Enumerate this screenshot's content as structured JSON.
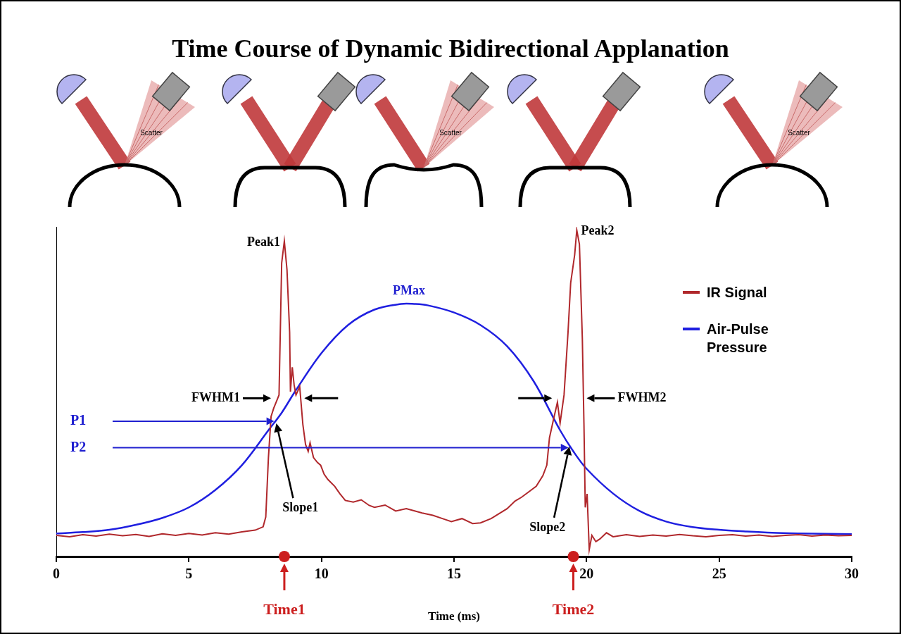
{
  "diagram": {
    "panels": [
      {
        "label": "Scatter"
      },
      {
        "label": null
      },
      {
        "label": "Scatter"
      },
      {
        "label": null
      },
      {
        "label": "Scatter"
      }
    ]
  },
  "chart_data": {
    "type": "line",
    "title": "Time Course of Dynamic Bidirectional Applanation",
    "x_label": "Time (ms)",
    "xlim": [
      0,
      30
    ],
    "xticks": [
      0,
      5,
      10,
      15,
      20,
      25,
      30
    ],
    "ylim": [
      0,
      100
    ],
    "tick_labels": "x",
    "grid": false,
    "legend": "upper right",
    "series": [
      {
        "name": "IR Signal",
        "color": "#b0282c",
        "x": [
          0,
          0.5,
          1,
          1.5,
          2,
          2.5,
          3,
          3.5,
          4,
          4.5,
          5,
          5.5,
          6,
          6.5,
          7,
          7.5,
          7.8,
          7.9,
          8.0,
          8.1,
          8.2,
          8.3,
          8.4,
          8.5,
          8.6,
          8.7,
          8.8,
          8.83,
          8.9,
          8.97,
          9.04,
          9.18,
          9.3,
          9.4,
          9.5,
          9.57,
          9.7,
          9.85,
          9.97,
          10.1,
          10.24,
          10.5,
          10.7,
          10.9,
          11.2,
          11.5,
          11.8,
          12.0,
          12.4,
          12.8,
          13.2,
          13.8,
          14.2,
          14.6,
          14.9,
          15.3,
          15.7,
          16.0,
          16.4,
          16.7,
          17.0,
          17.3,
          17.55,
          17.8,
          18.1,
          18.35,
          18.5,
          18.6,
          18.75,
          18.9,
          19.0,
          19.15,
          19.3,
          19.4,
          19.55,
          19.63,
          19.73,
          19.84,
          19.9,
          19.95,
          20.02,
          20.1,
          20.2,
          20.35,
          20.5,
          20.75,
          21,
          21.5,
          22,
          22.5,
          23,
          23.5,
          24,
          24.5,
          25,
          25.5,
          26,
          26.5,
          27,
          27.5,
          28,
          28.5,
          29,
          29.5,
          30
        ],
        "values": [
          6.4,
          6.0,
          6.6,
          6.2,
          6.8,
          6.3,
          6.7,
          6.1,
          6.9,
          6.4,
          7.0,
          6.5,
          7.2,
          6.8,
          7.5,
          8.0,
          9.0,
          12,
          30,
          42.5,
          45,
          47,
          49,
          89,
          95.7,
          87,
          68,
          50,
          57.4,
          52,
          49,
          51.5,
          40,
          34,
          31.9,
          34.5,
          30,
          28.5,
          27.7,
          25,
          23.4,
          21.3,
          19,
          17,
          16.5,
          17.2,
          15.5,
          14.9,
          15.6,
          13.8,
          14.5,
          13.2,
          12.5,
          11.4,
          10.6,
          11.5,
          10.0,
          10.2,
          11.5,
          13.0,
          14.5,
          16.8,
          18,
          19.5,
          21.3,
          24.5,
          27.7,
          36,
          41.5,
          46.8,
          40.4,
          49,
          68,
          83,
          91.5,
          99,
          94.7,
          66,
          40.4,
          14.9,
          19,
          2.1,
          6.4,
          4.5,
          5.3,
          7.2,
          6.0,
          6.6,
          6.1,
          6.5,
          6.2,
          6.7,
          6.3,
          6.0,
          6.4,
          6.6,
          6.2,
          6.5,
          6.1,
          6.4,
          6.6,
          6.2,
          6.5,
          6.3,
          6.4
        ]
      },
      {
        "name": "Air-Pulse Pressure",
        "color": "#1f1fe0",
        "x": [
          0,
          1,
          2,
          3,
          4,
          5,
          6,
          7,
          8,
          8.5,
          9,
          10,
          11,
          12,
          13,
          13.5,
          14,
          15,
          16,
          17,
          18,
          19,
          19.5,
          20,
          21,
          22,
          23,
          24,
          25,
          26,
          27,
          28,
          29,
          30
        ],
        "values": [
          7.0,
          7.4,
          8.1,
          9.6,
          11.7,
          14.9,
          20.2,
          27.7,
          38.3,
          43.6,
          50,
          61.7,
          70.2,
          74.9,
          76.6,
          76.6,
          76.2,
          74,
          70.2,
          63.8,
          53.2,
          38.3,
          31.9,
          26.6,
          19.1,
          13.8,
          10.6,
          8.9,
          8.1,
          7.6,
          7.2,
          7.0,
          6.9,
          6.8
        ]
      }
    ],
    "annotations": {
      "peaks": [
        {
          "text": "Peak1",
          "x": 8.6,
          "y": 95.7
        },
        {
          "text": "Peak2",
          "x": 19.63,
          "y": 99
        }
      ],
      "pressure_max": {
        "text": "PMax",
        "x": 13.3,
        "y": 76.6
      },
      "pressures": [
        {
          "text": "P1",
          "x": 8.3,
          "y": 41
        },
        {
          "text": "P2",
          "x": 19.4,
          "y": 33
        }
      ],
      "fwhm": [
        {
          "text": "FWHM1",
          "from": 8.15,
          "to": 9.3,
          "y": 48
        },
        {
          "text": "FWHM2",
          "from": 18.75,
          "to": 19.95,
          "y": 48
        }
      ],
      "slopes": [
        {
          "text": "Slope1",
          "x": 8.3,
          "y": 41
        },
        {
          "text": "Slope2",
          "x": 19.35,
          "y": 34
        }
      ],
      "times": [
        {
          "text": "Time1",
          "x": 8.6
        },
        {
          "text": "Time2",
          "x": 19.5
        }
      ]
    }
  }
}
